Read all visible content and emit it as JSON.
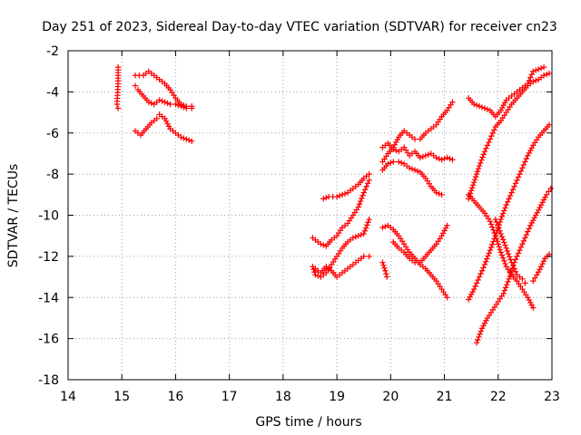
{
  "chart_data": {
    "type": "scatter",
    "title": "Day 251 of 2023, Sidereal Day-to-day VTEC variation (SDTVAR) for receiver cn23",
    "xlabel": "GPS time / hours",
    "ylabel": "SDTVAR / TECUs",
    "xlim": [
      14,
      23
    ],
    "ylim": [
      -18,
      -2
    ],
    "xticks": [
      14,
      15,
      16,
      17,
      18,
      19,
      20,
      21,
      22,
      23
    ],
    "yticks": [
      -2,
      -4,
      -6,
      -8,
      -10,
      -12,
      -14,
      -16,
      -18
    ],
    "grid": true,
    "marker": "plus",
    "color": "#ff0000",
    "series": [
      {
        "name": "s1",
        "points": [
          [
            14.93,
            -2.8
          ],
          [
            14.93,
            -3.6
          ],
          [
            14.91,
            -4.6
          ],
          [
            14.93,
            -4.8
          ]
        ]
      },
      {
        "name": "s2",
        "points": [
          [
            15.25,
            -3.2
          ],
          [
            15.4,
            -3.2
          ],
          [
            15.5,
            -3.0
          ],
          [
            15.6,
            -3.2
          ],
          [
            15.7,
            -3.4
          ],
          [
            15.8,
            -3.6
          ],
          [
            15.9,
            -3.9
          ],
          [
            16.0,
            -4.3
          ],
          [
            16.1,
            -4.6
          ],
          [
            16.2,
            -4.7
          ],
          [
            16.3,
            -4.7
          ]
        ]
      },
      {
        "name": "s3",
        "points": [
          [
            15.25,
            -3.7
          ],
          [
            15.3,
            -3.9
          ],
          [
            15.4,
            -4.2
          ],
          [
            15.5,
            -4.5
          ],
          [
            15.6,
            -4.6
          ],
          [
            15.7,
            -4.4
          ],
          [
            15.8,
            -4.5
          ],
          [
            15.9,
            -4.6
          ],
          [
            16.0,
            -4.6
          ],
          [
            16.1,
            -4.7
          ],
          [
            16.2,
            -4.8
          ],
          [
            16.3,
            -4.8
          ]
        ]
      },
      {
        "name": "s4",
        "points": [
          [
            15.25,
            -5.9
          ],
          [
            15.35,
            -6.1
          ],
          [
            15.45,
            -5.8
          ],
          [
            15.55,
            -5.5
          ],
          [
            15.65,
            -5.3
          ],
          [
            15.7,
            -5.1
          ],
          [
            15.8,
            -5.3
          ],
          [
            15.9,
            -5.8
          ],
          [
            16.0,
            -6.0
          ],
          [
            16.1,
            -6.2
          ],
          [
            16.2,
            -6.3
          ],
          [
            16.3,
            -6.4
          ]
        ]
      },
      {
        "name": "s5",
        "points": [
          [
            18.75,
            -9.2
          ],
          [
            18.85,
            -9.1
          ],
          [
            19.0,
            -9.1
          ],
          [
            19.2,
            -8.9
          ],
          [
            19.3,
            -8.7
          ],
          [
            19.4,
            -8.5
          ],
          [
            19.5,
            -8.2
          ],
          [
            19.6,
            -8.0
          ]
        ]
      },
      {
        "name": "s6",
        "points": [
          [
            18.55,
            -11.1
          ],
          [
            18.7,
            -11.4
          ],
          [
            18.8,
            -11.5
          ],
          [
            18.9,
            -11.2
          ],
          [
            19.0,
            -11.0
          ],
          [
            19.1,
            -10.6
          ],
          [
            19.2,
            -10.4
          ],
          [
            19.3,
            -10.0
          ],
          [
            19.4,
            -9.6
          ],
          [
            19.5,
            -8.9
          ],
          [
            19.6,
            -8.3
          ]
        ]
      },
      {
        "name": "s7",
        "points": [
          [
            18.55,
            -12.5
          ],
          [
            18.6,
            -12.9
          ],
          [
            18.7,
            -13.0
          ],
          [
            18.8,
            -12.8
          ],
          [
            18.9,
            -12.4
          ],
          [
            19.0,
            -12.0
          ],
          [
            19.1,
            -11.6
          ],
          [
            19.2,
            -11.3
          ],
          [
            19.3,
            -11.1
          ],
          [
            19.4,
            -11.0
          ],
          [
            19.5,
            -10.9
          ],
          [
            19.6,
            -10.2
          ]
        ]
      },
      {
        "name": "s8",
        "points": [
          [
            18.6,
            -12.6
          ],
          [
            18.7,
            -12.8
          ],
          [
            18.8,
            -12.5
          ],
          [
            18.9,
            -12.7
          ],
          [
            19.0,
            -13.0
          ],
          [
            19.1,
            -12.8
          ],
          [
            19.2,
            -12.6
          ],
          [
            19.3,
            -12.4
          ],
          [
            19.4,
            -12.2
          ],
          [
            19.5,
            -12.0
          ],
          [
            19.6,
            -12.0
          ]
        ]
      },
      {
        "name": "s9",
        "points": [
          [
            19.85,
            -12.3
          ],
          [
            19.9,
            -12.7
          ],
          [
            19.93,
            -13.0
          ]
        ]
      },
      {
        "name": "s10",
        "points": [
          [
            19.85,
            -6.7
          ],
          [
            19.95,
            -6.5
          ],
          [
            20.05,
            -6.8
          ],
          [
            20.15,
            -6.9
          ],
          [
            20.25,
            -6.7
          ],
          [
            20.35,
            -7.1
          ],
          [
            20.45,
            -6.9
          ],
          [
            20.55,
            -7.2
          ],
          [
            20.65,
            -7.1
          ],
          [
            20.75,
            -7.0
          ],
          [
            20.85,
            -7.2
          ],
          [
            20.95,
            -7.3
          ],
          [
            21.05,
            -7.2
          ],
          [
            21.15,
            -7.3
          ]
        ]
      },
      {
        "name": "s11",
        "points": [
          [
            19.85,
            -7.4
          ],
          [
            19.95,
            -7.0
          ],
          [
            20.05,
            -6.7
          ],
          [
            20.15,
            -6.2
          ],
          [
            20.25,
            -5.9
          ],
          [
            20.35,
            -6.1
          ],
          [
            20.45,
            -6.3
          ],
          [
            20.55,
            -6.3
          ],
          [
            20.65,
            -6.0
          ],
          [
            20.75,
            -5.8
          ],
          [
            20.85,
            -5.6
          ],
          [
            20.95,
            -5.2
          ],
          [
            21.05,
            -4.9
          ],
          [
            21.15,
            -4.5
          ]
        ]
      },
      {
        "name": "s12",
        "points": [
          [
            19.85,
            -7.8
          ],
          [
            19.95,
            -7.5
          ],
          [
            20.05,
            -7.4
          ],
          [
            20.15,
            -7.4
          ],
          [
            20.25,
            -7.5
          ],
          [
            20.35,
            -7.7
          ],
          [
            20.45,
            -7.8
          ],
          [
            20.55,
            -7.9
          ],
          [
            20.65,
            -8.2
          ],
          [
            20.75,
            -8.6
          ],
          [
            20.85,
            -8.9
          ],
          [
            20.95,
            -9.0
          ]
        ]
      },
      {
        "name": "s13",
        "points": [
          [
            19.85,
            -10.6
          ],
          [
            19.95,
            -10.5
          ],
          [
            20.05,
            -10.7
          ],
          [
            20.15,
            -11.0
          ],
          [
            20.25,
            -11.4
          ],
          [
            20.35,
            -11.8
          ],
          [
            20.45,
            -12.1
          ],
          [
            20.55,
            -12.4
          ],
          [
            20.65,
            -12.6
          ],
          [
            20.75,
            -12.9
          ],
          [
            20.85,
            -13.2
          ],
          [
            20.95,
            -13.6
          ],
          [
            21.05,
            -14.0
          ]
        ]
      },
      {
        "name": "s14",
        "points": [
          [
            20.05,
            -11.3
          ],
          [
            20.15,
            -11.6
          ],
          [
            20.25,
            -11.8
          ],
          [
            20.35,
            -12.1
          ],
          [
            20.45,
            -12.3
          ],
          [
            20.55,
            -12.3
          ],
          [
            20.65,
            -12.0
          ],
          [
            20.75,
            -11.7
          ],
          [
            20.85,
            -11.4
          ],
          [
            20.95,
            -11.0
          ],
          [
            21.05,
            -10.5
          ]
        ]
      },
      {
        "name": "s15",
        "points": [
          [
            21.45,
            -4.3
          ],
          [
            21.55,
            -4.6
          ],
          [
            21.65,
            -4.7
          ],
          [
            21.75,
            -4.8
          ],
          [
            21.85,
            -4.9
          ],
          [
            21.95,
            -5.2
          ],
          [
            22.05,
            -4.9
          ],
          [
            22.15,
            -4.4
          ],
          [
            22.25,
            -4.2
          ],
          [
            22.35,
            -4.0
          ],
          [
            22.45,
            -3.8
          ],
          [
            22.55,
            -3.6
          ],
          [
            22.65,
            -3.0
          ],
          [
            22.75,
            -2.9
          ],
          [
            22.85,
            -2.8
          ]
        ]
      },
      {
        "name": "s16",
        "points": [
          [
            21.45,
            -9.2
          ],
          [
            21.55,
            -8.4
          ],
          [
            21.65,
            -7.6
          ],
          [
            21.75,
            -6.9
          ],
          [
            21.85,
            -6.3
          ],
          [
            21.95,
            -5.7
          ],
          [
            22.05,
            -5.4
          ],
          [
            22.15,
            -5.0
          ],
          [
            22.25,
            -4.6
          ],
          [
            22.35,
            -4.3
          ],
          [
            22.45,
            -4.0
          ],
          [
            22.55,
            -3.7
          ],
          [
            22.65,
            -3.5
          ],
          [
            22.75,
            -3.4
          ],
          [
            22.85,
            -3.2
          ],
          [
            22.95,
            -3.1
          ]
        ]
      },
      {
        "name": "s17",
        "points": [
          [
            21.45,
            -9.0
          ],
          [
            21.55,
            -9.3
          ],
          [
            21.65,
            -9.6
          ],
          [
            21.75,
            -9.9
          ],
          [
            21.85,
            -10.3
          ],
          [
            21.95,
            -11.0
          ],
          [
            22.05,
            -11.8
          ],
          [
            22.15,
            -12.5
          ],
          [
            22.25,
            -12.9
          ],
          [
            22.35,
            -13.2
          ],
          [
            22.45,
            -13.6
          ],
          [
            22.55,
            -14.0
          ],
          [
            22.65,
            -14.5
          ]
        ]
      },
      {
        "name": "s18",
        "points": [
          [
            21.45,
            -14.1
          ],
          [
            21.55,
            -13.6
          ],
          [
            21.65,
            -13.0
          ],
          [
            21.75,
            -12.4
          ],
          [
            21.85,
            -11.7
          ],
          [
            21.95,
            -11.0
          ],
          [
            22.05,
            -10.2
          ],
          [
            22.15,
            -9.5
          ],
          [
            22.25,
            -8.9
          ],
          [
            22.35,
            -8.3
          ],
          [
            22.45,
            -7.7
          ],
          [
            22.55,
            -7.1
          ],
          [
            22.65,
            -6.6
          ],
          [
            22.75,
            -6.2
          ],
          [
            22.85,
            -5.9
          ],
          [
            22.95,
            -5.6
          ]
        ]
      },
      {
        "name": "s19",
        "points": [
          [
            21.6,
            -16.2
          ],
          [
            21.7,
            -15.5
          ],
          [
            21.8,
            -15.0
          ],
          [
            21.9,
            -14.6
          ],
          [
            22.0,
            -14.2
          ],
          [
            22.1,
            -13.8
          ],
          [
            22.2,
            -13.1
          ],
          [
            22.3,
            -12.3
          ],
          [
            22.4,
            -11.7
          ],
          [
            22.5,
            -11.1
          ],
          [
            22.6,
            -10.5
          ],
          [
            22.7,
            -10.0
          ],
          [
            22.8,
            -9.5
          ],
          [
            22.9,
            -9.0
          ],
          [
            22.98,
            -8.7
          ]
        ]
      },
      {
        "name": "s20",
        "points": [
          [
            21.95,
            -10.2
          ],
          [
            22.05,
            -10.9
          ],
          [
            22.15,
            -11.6
          ],
          [
            22.25,
            -12.3
          ],
          [
            22.35,
            -12.9
          ],
          [
            22.45,
            -13.1
          ],
          [
            22.5,
            -13.3
          ]
        ]
      },
      {
        "name": "s21",
        "points": [
          [
            22.65,
            -13.2
          ],
          [
            22.72,
            -12.9
          ],
          [
            22.8,
            -12.5
          ],
          [
            22.87,
            -12.1
          ],
          [
            22.95,
            -11.9
          ]
        ]
      }
    ]
  }
}
